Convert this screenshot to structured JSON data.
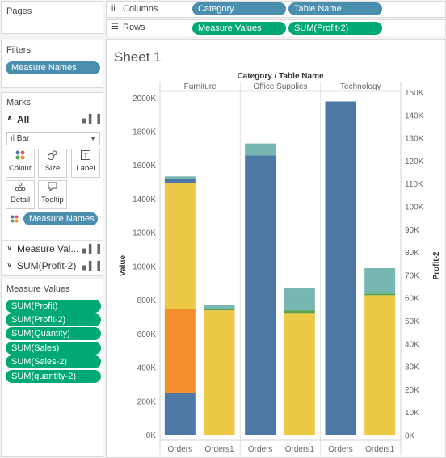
{
  "pages": {
    "title": "Pages"
  },
  "filters": {
    "title": "Filters",
    "pill": "Measure Names"
  },
  "marks": {
    "title": "Marks",
    "all_label": "All",
    "mark_type": "Bar",
    "cards": [
      {
        "label": "Colour",
        "icon": "colour-icon"
      },
      {
        "label": "Size",
        "icon": "size-icon"
      },
      {
        "label": "Label",
        "icon": "label-icon"
      },
      {
        "label": "Detail",
        "icon": "detail-icon"
      },
      {
        "label": "Tooltip",
        "icon": "tooltip-icon"
      }
    ],
    "colour_pill": "Measure Names",
    "shelves": [
      {
        "label": "Measure Val..."
      },
      {
        "label": "SUM(Profit-2)"
      }
    ]
  },
  "measure_values": {
    "title": "Measure Values",
    "items": [
      "SUM(Profit)",
      "SUM(Profit-2)",
      "SUM(Quantity)",
      "SUM(Sales)",
      "SUM(Sales-2)",
      "SUM(quantity-2)"
    ]
  },
  "columns": {
    "label": "Columns",
    "pills": [
      "Category",
      "Table Name"
    ]
  },
  "rows": {
    "label": "Rows",
    "pills": [
      "Measure Values",
      "SUM(Profit-2)"
    ]
  },
  "sheet": {
    "title": "Sheet 1"
  },
  "colors": {
    "pill_blue": "#4a8fb0",
    "pill_green": "#00a874",
    "bar_blue": "#4e79a7",
    "bar_orange": "#f28e2b",
    "bar_yellow": "#edc948",
    "bar_teal": "#76b7b2",
    "bar_green": "#59a14f"
  },
  "chart_data": {
    "type": "bar",
    "title": "",
    "header_title": "Category / Table Name",
    "categories": [
      "Furniture",
      "Office Supplies",
      "Technology"
    ],
    "sub_categories": [
      "Orders",
      "Orders1"
    ],
    "ylabel_left": "Value",
    "ylabel_right": "Profit-2",
    "y_left_ticks": [
      "0K",
      "200K",
      "400K",
      "600K",
      "800K",
      "1000K",
      "1200K",
      "1400K",
      "1600K",
      "1800K",
      "2000K"
    ],
    "y_right_ticks": [
      "0K",
      "10K",
      "20K",
      "30K",
      "40K",
      "50K",
      "60K",
      "70K",
      "80K",
      "90K",
      "100K",
      "110K",
      "120K",
      "130K",
      "140K",
      "150K"
    ],
    "ylim": [
      0,
      2050000
    ],
    "stacks": [
      {
        "category": "Furniture",
        "sub": "Orders",
        "segments": [
          {
            "value": 250000,
            "color": "bar_blue"
          },
          {
            "value": 500000,
            "color": "bar_orange"
          },
          {
            "value": 745000,
            "color": "bar_yellow"
          },
          {
            "value": 25000,
            "color": "bar_blue"
          },
          {
            "value": 15000,
            "color": "bar_teal"
          }
        ]
      },
      {
        "category": "Furniture",
        "sub": "Orders1",
        "segments": [
          {
            "value": 740000,
            "color": "bar_yellow"
          },
          {
            "value": 10000,
            "color": "bar_green"
          },
          {
            "value": 20000,
            "color": "bar_teal"
          }
        ]
      },
      {
        "category": "Office Supplies",
        "sub": "Orders",
        "segments": [
          {
            "value": 1660000,
            "color": "bar_blue"
          },
          {
            "value": 70000,
            "color": "bar_teal"
          }
        ]
      },
      {
        "category": "Office Supplies",
        "sub": "Orders1",
        "segments": [
          {
            "value": 720000,
            "color": "bar_yellow"
          },
          {
            "value": 20000,
            "color": "bar_green"
          },
          {
            "value": 130000,
            "color": "bar_teal"
          }
        ]
      },
      {
        "category": "Technology",
        "sub": "Orders",
        "segments": [
          {
            "value": 1980000,
            "color": "bar_blue"
          }
        ]
      },
      {
        "category": "Technology",
        "sub": "Orders1",
        "segments": [
          {
            "value": 830000,
            "color": "bar_yellow"
          },
          {
            "value": 10000,
            "color": "bar_green"
          },
          {
            "value": 150000,
            "color": "bar_teal"
          }
        ]
      }
    ]
  }
}
